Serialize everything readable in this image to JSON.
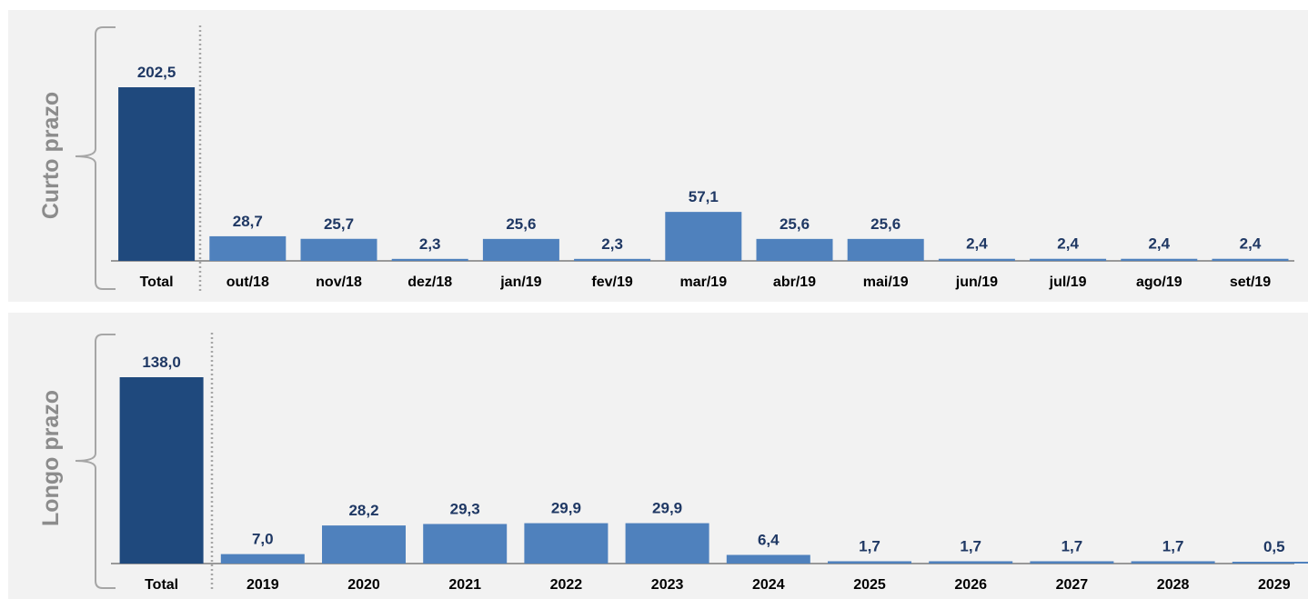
{
  "colors": {
    "total_bar": "#1f497d",
    "month_bar": "#4f81bd",
    "value_label": "#1f3864",
    "category_label": "#000000",
    "side_label": "#8c8c8c",
    "bracket": "#a6a6a6",
    "separator": "#a6a6a6",
    "baseline": "#404040",
    "panel_bg": "#f2f2f2"
  },
  "chart_data": [
    {
      "type": "bar",
      "side_label": "Curto prazo",
      "categories": [
        "Total",
        "out/18",
        "nov/18",
        "dez/18",
        "jan/19",
        "fev/19",
        "mar/19",
        "abr/19",
        "mai/19",
        "jun/19",
        "jul/19",
        "ago/19",
        "set/19"
      ],
      "values": [
        202.5,
        28.7,
        25.7,
        2.3,
        25.6,
        2.3,
        57.1,
        25.6,
        25.6,
        2.4,
        2.4,
        2.4,
        2.4
      ],
      "value_labels": [
        "202,5",
        "28,7",
        "25,7",
        "2,3",
        "25,6",
        "2,3",
        "57,1",
        "25,6",
        "25,6",
        "2,4",
        "2,4",
        "2,4",
        "2,4"
      ],
      "grid": false,
      "legend": "none"
    },
    {
      "type": "bar",
      "side_label": "Longo prazo",
      "categories": [
        "Total",
        "2019",
        "2020",
        "2021",
        "2022",
        "2023",
        "2024",
        "2025",
        "2026",
        "2027",
        "2028",
        "2029"
      ],
      "values": [
        138.0,
        7.0,
        28.2,
        29.3,
        29.9,
        29.9,
        6.4,
        1.7,
        1.7,
        1.7,
        1.7,
        0.5
      ],
      "value_labels": [
        "138,0",
        "7,0",
        "28,2",
        "29,3",
        "29,9",
        "29,9",
        "6,4",
        "1,7",
        "1,7",
        "1,7",
        "1,7",
        "0,5"
      ],
      "grid": false,
      "legend": "none"
    }
  ]
}
